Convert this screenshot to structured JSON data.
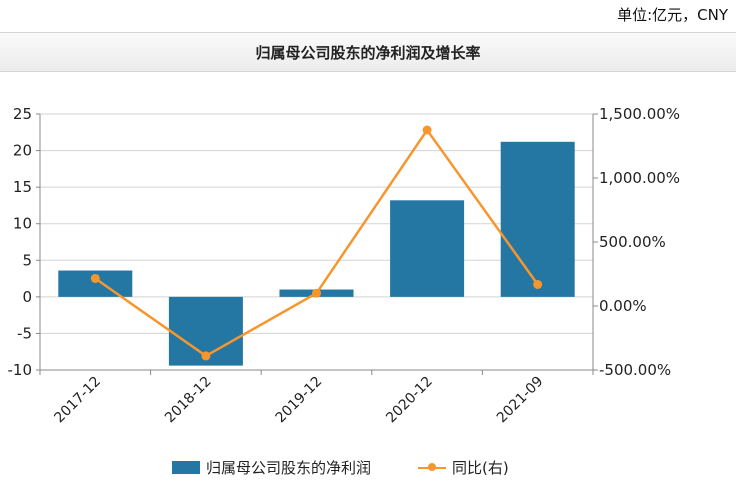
{
  "header": {
    "unit_label": "单位:亿元，CNY"
  },
  "chart_data": {
    "type": "bar",
    "title": "归属母公司股东的净利润及增长率",
    "categories": [
      "2017-12",
      "2018-12",
      "2019-12",
      "2020-12",
      "2021-09"
    ],
    "series": [
      {
        "name": "归属母公司股东的净利润",
        "type": "bar",
        "axis": "left",
        "values": [
          3.6,
          -9.4,
          1.0,
          13.2,
          21.2
        ],
        "color": "#2577a3"
      },
      {
        "name": "同比(右)",
        "type": "line",
        "axis": "right",
        "values": [
          215,
          -390,
          100,
          1375,
          168
        ],
        "color": "#f7962d"
      }
    ],
    "y_left": {
      "ylim": [
        -10,
        25
      ],
      "ticks": [
        -10,
        -5,
        0,
        5,
        10,
        15,
        20,
        25
      ]
    },
    "y_right": {
      "ylim": [
        -500,
        1500
      ],
      "ticks": [
        -500,
        0,
        500,
        1000,
        1500
      ],
      "tick_labels": [
        "-500.00%",
        "0.00%",
        "500.00%",
        "1,000.00%",
        "1,500.00%"
      ]
    },
    "grid": true,
    "legend": "bottom"
  }
}
